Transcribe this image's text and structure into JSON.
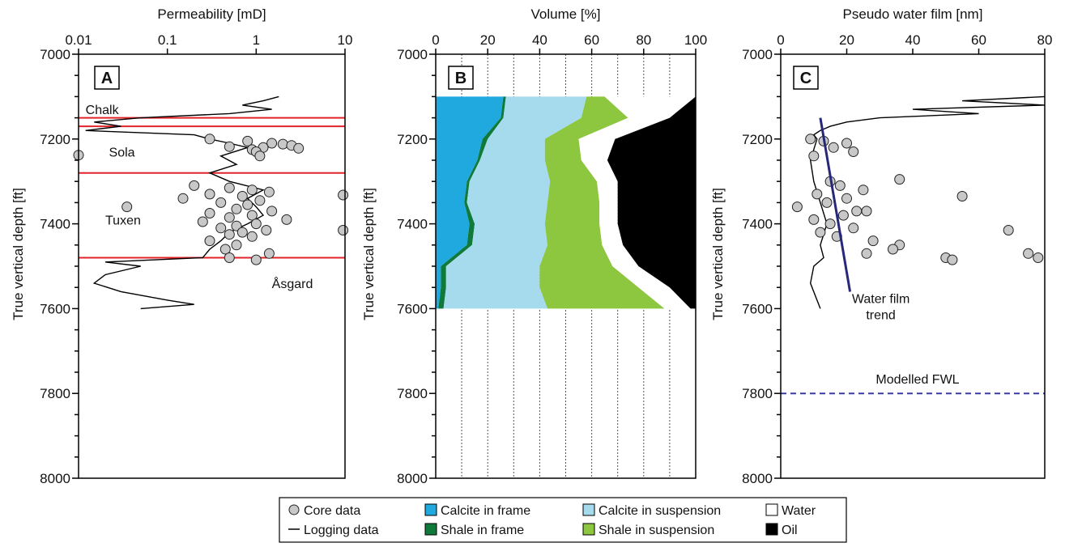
{
  "chart_data": [
    {
      "panel": "A",
      "type": "scatter",
      "xlabel": "Permeability [mD]",
      "ylabel": "True vertical depth [ft]",
      "xscale": "log",
      "xlim": [
        0.01,
        10
      ],
      "ylim": [
        7000,
        8000
      ],
      "x_ticks": [
        "0.01",
        "0.1",
        "1",
        "10"
      ],
      "y_ticks": [
        "7000",
        "7200",
        "7400",
        "7600",
        "7800",
        "8000"
      ],
      "formation_tops": [
        7150,
        7170,
        7280,
        7480
      ],
      "formation_labels": [
        {
          "text": "Chalk",
          "depth": 7130,
          "x": 0.012
        },
        {
          "text": "Sola",
          "depth": 7230,
          "x": 0.022
        },
        {
          "text": "Tuxen",
          "depth": 7390,
          "x": 0.02
        },
        {
          "text": "Åsgard",
          "depth": 7540,
          "x": 1.5
        }
      ],
      "logging_data": {
        "name": "Logging data",
        "depth": [
          7100,
          7110,
          7120,
          7130,
          7140,
          7150,
          7160,
          7170,
          7180,
          7190,
          7200,
          7210,
          7220,
          7240,
          7260,
          7280,
          7300,
          7320,
          7340,
          7360,
          7380,
          7400,
          7420,
          7440,
          7460,
          7480,
          7490,
          7500,
          7520,
          7540,
          7560,
          7580,
          7590,
          7600
        ],
        "x": [
          1.8,
          1.2,
          0.7,
          1.5,
          0.5,
          0.05,
          0.015,
          0.03,
          0.012,
          0.2,
          0.3,
          0.5,
          0.8,
          0.4,
          0.6,
          0.3,
          0.5,
          1.2,
          0.8,
          1.0,
          1.2,
          0.8,
          0.5,
          0.4,
          0.3,
          0.25,
          0.02,
          0.05,
          0.02,
          0.015,
          0.03,
          0.1,
          0.2,
          0.05
        ]
      },
      "core_data": {
        "name": "Core data",
        "depth": [
          7200,
          7205,
          7210,
          7212,
          7215,
          7218,
          7220,
          7222,
          7225,
          7230,
          7238,
          7240,
          7310,
          7315,
          7320,
          7325,
          7330,
          7335,
          7340,
          7345,
          7350,
          7355,
          7360,
          7365,
          7370,
          7375,
          7380,
          7385,
          7390,
          7395,
          7400,
          7405,
          7410,
          7415,
          7420,
          7425,
          7430,
          7440,
          7450,
          7460,
          7470,
          7480,
          7485,
          7332,
          7415
        ],
        "x": [
          0.3,
          0.8,
          1.5,
          2.0,
          2.5,
          0.5,
          1.2,
          3.0,
          0.9,
          1.0,
          0.01,
          1.1,
          0.2,
          0.5,
          0.9,
          1.4,
          0.3,
          0.7,
          0.15,
          1.1,
          0.4,
          0.8,
          0.035,
          0.6,
          1.5,
          0.3,
          0.9,
          0.5,
          2.2,
          0.25,
          1.0,
          0.6,
          0.4,
          1.3,
          0.7,
          0.5,
          0.9,
          0.3,
          0.6,
          0.45,
          1.4,
          0.5,
          1.0,
          9.5,
          9.5
        ]
      }
    },
    {
      "panel": "B",
      "type": "area",
      "xlabel": "Volume [%]",
      "ylabel": "True vertical depth [ft]",
      "xlim": [
        0,
        100
      ],
      "ylim": [
        7000,
        8000
      ],
      "x_ticks": [
        "0",
        "20",
        "40",
        "60",
        "80",
        "100"
      ],
      "y_ticks": [
        "7000",
        "7200",
        "7400",
        "7600",
        "7800",
        "8000"
      ],
      "grid_x": [
        10,
        20,
        30,
        40,
        50,
        60,
        70,
        80,
        90
      ],
      "depth": [
        7100,
        7150,
        7200,
        7250,
        7300,
        7350,
        7400,
        7450,
        7500,
        7550,
        7600
      ],
      "series": [
        {
          "name": "Calcite in frame",
          "color": "#1fa9df",
          "values": [
            26,
            25,
            18,
            16,
            12,
            11,
            13,
            12,
            2,
            2,
            1
          ]
        },
        {
          "name": "Shale in frame",
          "color": "#0f7a3a",
          "values": [
            1,
            1,
            2,
            1,
            1,
            1,
            2,
            2,
            2,
            2,
            2
          ]
        },
        {
          "name": "Calcite in suspension",
          "color": "#a5dbed",
          "values": [
            31,
            30,
            22,
            25,
            31,
            31,
            27,
            29,
            36,
            36,
            40
          ]
        },
        {
          "name": "Shale in suspension",
          "color": "#8dc63f",
          "values": [
            7,
            18,
            13,
            14,
            18,
            20,
            21,
            21,
            28,
            38,
            45
          ]
        },
        {
          "name": "Water",
          "color": "#ffffff",
          "values": [
            35,
            16,
            14,
            10,
            8,
            7,
            7,
            8,
            10,
            12,
            10
          ]
        },
        {
          "name": "Oil",
          "color": "#000000",
          "values": [
            0,
            10,
            31,
            34,
            30,
            30,
            30,
            28,
            22,
            10,
            2
          ]
        }
      ]
    },
    {
      "panel": "C",
      "type": "scatter",
      "xlabel": "Pseudo water film [nm]",
      "ylabel": "True vertical depth [ft]",
      "xlim": [
        0,
        80
      ],
      "ylim": [
        7000,
        8000
      ],
      "x_ticks": [
        "0",
        "20",
        "40",
        "60",
        "80"
      ],
      "y_ticks": [
        "7000",
        "7200",
        "7400",
        "7600",
        "7800",
        "8000"
      ],
      "logging_data": {
        "name": "Logging data",
        "depth": [
          7100,
          7110,
          7120,
          7130,
          7140,
          7150,
          7160,
          7170,
          7180,
          7190,
          7200,
          7250,
          7300,
          7350,
          7400,
          7450,
          7480,
          7500,
          7540,
          7580,
          7600
        ],
        "x": [
          80,
          55,
          80,
          40,
          60,
          30,
          20,
          15,
          12,
          10,
          11,
          9,
          10,
          12,
          14,
          12,
          13,
          10,
          9,
          11,
          12
        ]
      },
      "core_data": {
        "name": "Core data",
        "depth": [
          7200,
          7205,
          7210,
          7220,
          7230,
          7240,
          7300,
          7310,
          7320,
          7330,
          7340,
          7350,
          7360,
          7370,
          7380,
          7390,
          7400,
          7410,
          7420,
          7430,
          7440,
          7450,
          7460,
          7470,
          7480,
          7485,
          7295,
          7335,
          7415,
          7470,
          7480,
          7370
        ],
        "x": [
          9,
          13,
          20,
          16,
          22,
          10,
          15,
          18,
          25,
          11,
          20,
          14,
          5,
          26,
          19,
          10,
          15,
          22,
          12,
          17,
          28,
          36,
          34,
          26,
          50,
          52,
          36,
          55,
          69,
          75,
          78,
          23
        ]
      },
      "trend": {
        "name": "Water film trend",
        "start": {
          "x": 12,
          "depth": 7150
        },
        "end": {
          "x": 21,
          "depth": 7560
        }
      },
      "fwl": {
        "label": "Modelled FWL",
        "depth": 7800
      }
    }
  ],
  "legend": {
    "items": [
      {
        "label": "Core data",
        "kind": "circle",
        "color": "#c8c8c8"
      },
      {
        "label": "Calcite in frame",
        "kind": "box",
        "color": "#1fa9df"
      },
      {
        "label": "Calcite in suspension",
        "kind": "box",
        "color": "#a5dbed"
      },
      {
        "label": "Water",
        "kind": "box",
        "color": "#ffffff"
      },
      {
        "label": "Logging data",
        "kind": "line",
        "color": "#000000"
      },
      {
        "label": "Shale in frame",
        "kind": "box",
        "color": "#0f7a3a"
      },
      {
        "label": "Shale in suspension",
        "kind": "box",
        "color": "#8dc63f"
      },
      {
        "label": "Oil",
        "kind": "box",
        "color": "#000000"
      }
    ]
  },
  "colors": {
    "formation_line": "#e0242a",
    "trend_line": "#27287a",
    "fwl_line": "#3a3aa0",
    "core_fill": "#c8c8c8"
  }
}
